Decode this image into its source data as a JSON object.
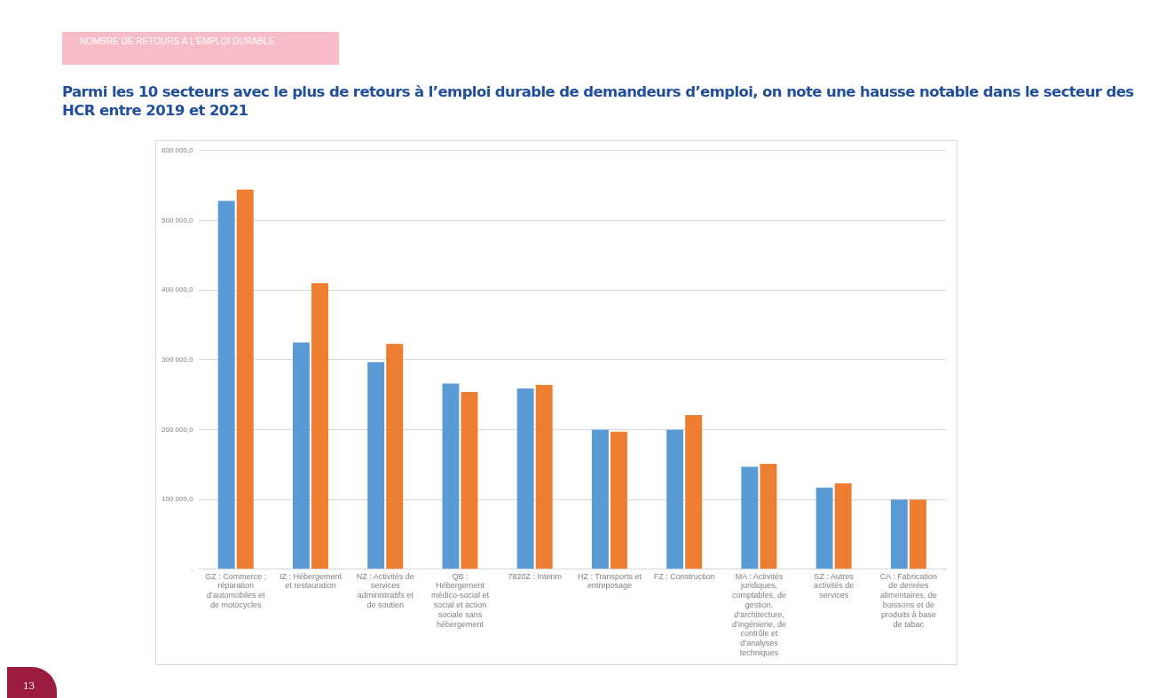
{
  "chart_data": {
    "type": "bar",
    "subtitle": "NOMBRE DE RETOURS À L’EMPLOI DURABLE",
    "title": "Parmi les 10 secteurs avec le plus de retours à l’emploi durable de demandeurs d’emploi, on note une hausse notable dans le secteur des HCR entre 2019 et 2021",
    "categories": [
      "GZ : Commerce ; réparation d’automobiles et de motocycles",
      "IZ : Hébergement et restauration",
      "NZ : Activités de services administratifs et de soutien",
      "QB : Hébergement médico-social et social et action sociale sans hébergement",
      "7820Z : Interim",
      "HZ : Transports et entreposage",
      "FZ : Construction",
      "MA : Activités juridiques, comptables, de gestion, d’architecture, d’ingénierie, de contrôle et d’analyses techniques",
      "SZ : Autres activités de services",
      "CA : Fabrication de denrées alimentaires, de boissons et de produits à base de tabac"
    ],
    "series": [
      {
        "color": "#5b9bd5",
        "values": [
          528000,
          325000,
          297000,
          266000,
          259000,
          200000,
          200000,
          147000,
          117000,
          100000
        ]
      },
      {
        "color": "#ed7d31",
        "values": [
          544000,
          410000,
          323000,
          254000,
          264000,
          197000,
          221000,
          151000,
          123000,
          100000
        ]
      }
    ],
    "ylim": [
      0,
      600000
    ],
    "yticks": [
      {
        "value": 0,
        "label": "-"
      },
      {
        "value": 100000,
        "label": "100 000,0"
      },
      {
        "value": 200000,
        "label": "200 000,0"
      },
      {
        "value": 300000,
        "label": "300 000,0"
      },
      {
        "value": 400000,
        "label": "400 000,0"
      },
      {
        "value": 500000,
        "label": "500 000,0"
      },
      {
        "value": 600000,
        "label": "600 000,0"
      }
    ],
    "grid": "y",
    "annotations": [
      "13"
    ]
  }
}
